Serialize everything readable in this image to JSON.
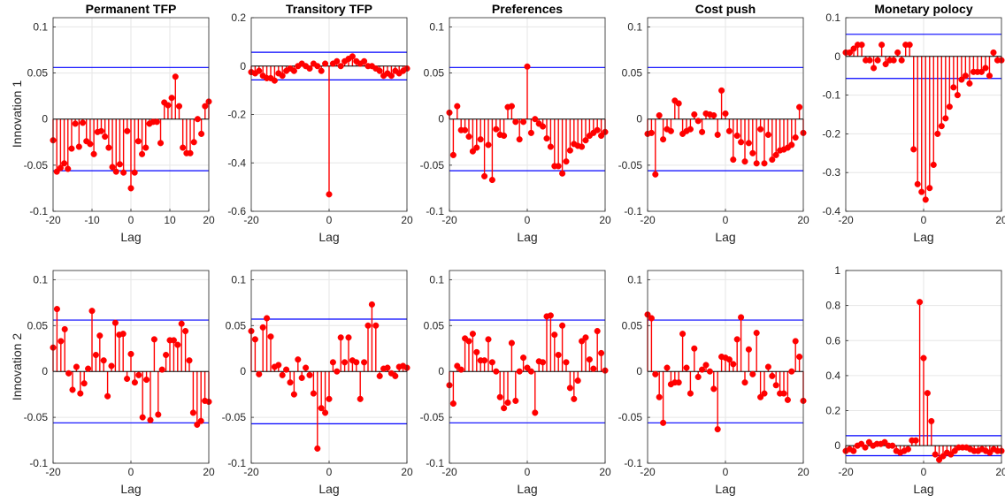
{
  "figure": {
    "row_labels": [
      "Innovation 1",
      "Innovation 2"
    ],
    "confidence_band_color": "#0000ff",
    "stem_color": "#ff0000",
    "marker_color": "#ff0000",
    "zero_line_color": "#000000",
    "grid": true
  },
  "chart_data": [
    {
      "type": "stem",
      "title": "Permanent TFP",
      "xlabel": "Lag",
      "ylabel": "Innovation 1",
      "xlim": [
        -20,
        20
      ],
      "ylim": [
        -0.1,
        0.11
      ],
      "xticks": [
        -20,
        -10,
        0,
        10,
        20
      ],
      "xtick_labels": [
        "-20",
        "-10",
        "0",
        "10",
        "20"
      ],
      "yticks": [
        -0.1,
        -0.05,
        0,
        0.05,
        0.1
      ],
      "ytick_labels": [
        "-0.1",
        "-0.05",
        "0",
        "0.05",
        "0.1"
      ],
      "band": 0.056,
      "values": [
        -0.023,
        -0.057,
        -0.053,
        -0.048,
        -0.054,
        -0.032,
        -0.005,
        -0.03,
        -0.004,
        -0.024,
        -0.027,
        -0.038,
        -0.014,
        -0.013,
        -0.019,
        -0.031,
        -0.052,
        -0.057,
        -0.049,
        -0.058,
        -0.013,
        -0.075,
        -0.058,
        -0.024,
        -0.038,
        -0.031,
        -0.005,
        -0.003,
        -0.003,
        -0.026,
        0.018,
        0.015,
        0.023,
        0.046,
        0.014,
        -0.031,
        -0.037,
        -0.037,
        -0.025,
        0.0,
        -0.016,
        0.014,
        0.019
      ]
    },
    {
      "type": "stem",
      "title": "Transitory TFP",
      "xlabel": "Lag",
      "ylabel": "",
      "xlim": [
        -20,
        20
      ],
      "ylim": [
        -0.6,
        0.2
      ],
      "xticks": [
        -20,
        0,
        20
      ],
      "xtick_labels": [
        "-20",
        "0",
        "20"
      ],
      "yticks": [
        -0.6,
        -0.4,
        -0.2,
        0,
        0.2
      ],
      "ytick_labels": [
        "-0.6",
        "-0.4",
        "-0.2",
        "0",
        "0.2"
      ],
      "band": 0.057,
      "values": [
        -0.025,
        -0.03,
        -0.02,
        -0.04,
        -0.05,
        -0.05,
        -0.06,
        -0.03,
        -0.04,
        -0.02,
        -0.01,
        -0.02,
        0.0,
        0.01,
        0.0,
        -0.01,
        0.01,
        0.0,
        -0.02,
        0.01,
        -0.53,
        0.01,
        0.02,
        0.0,
        0.02,
        0.03,
        0.04,
        0.02,
        0.01,
        0.02,
        0.0,
        0.0,
        -0.01,
        -0.02,
        -0.04,
        -0.03,
        -0.04,
        -0.02,
        -0.03,
        -0.02,
        -0.01
      ]
    },
    {
      "type": "stem",
      "title": "Preferences",
      "xlabel": "Lag",
      "ylabel": "",
      "xlim": [
        -20,
        20
      ],
      "ylim": [
        -0.1,
        0.11
      ],
      "xticks": [
        -20,
        0,
        20
      ],
      "xtick_labels": [
        "-20",
        "0",
        "20"
      ],
      "yticks": [
        -0.1,
        -0.05,
        0,
        0.05,
        0.1
      ],
      "ytick_labels": [
        "-0.1",
        "-0.05",
        "0",
        "0.05",
        "0.1"
      ],
      "band": 0.056,
      "values": [
        0.007,
        -0.039,
        0.014,
        -0.012,
        -0.012,
        -0.019,
        -0.035,
        -0.031,
        -0.022,
        -0.062,
        -0.028,
        -0.066,
        -0.011,
        -0.017,
        -0.018,
        0.013,
        0.014,
        -0.003,
        -0.022,
        -0.003,
        0.057,
        -0.015,
        0.0,
        -0.005,
        -0.008,
        -0.021,
        -0.03,
        -0.051,
        -0.051,
        -0.059,
        -0.046,
        -0.034,
        -0.027,
        -0.029,
        -0.03,
        -0.023,
        -0.018,
        -0.015,
        -0.012,
        -0.018,
        -0.014
      ]
    },
    {
      "type": "stem",
      "title": "Cost push",
      "xlabel": "Lag",
      "ylabel": "",
      "xlim": [
        -20,
        20
      ],
      "ylim": [
        -0.1,
        0.11
      ],
      "xticks": [
        -20,
        0,
        20
      ],
      "xtick_labels": [
        "-20",
        "0",
        "20"
      ],
      "yticks": [
        -0.1,
        -0.05,
        0,
        0.05,
        0.1
      ],
      "ytick_labels": [
        "-0.1",
        "-0.05",
        "0",
        "0.05",
        "0.1"
      ],
      "band": 0.056,
      "values": [
        -0.016,
        -0.015,
        -0.06,
        0.004,
        -0.022,
        -0.011,
        -0.013,
        0.02,
        0.017,
        -0.016,
        -0.013,
        -0.011,
        0.005,
        -0.002,
        -0.014,
        0.006,
        0.005,
        0.004,
        -0.017,
        0.031,
        0.006,
        -0.013,
        -0.044,
        -0.018,
        -0.025,
        -0.046,
        -0.026,
        -0.037,
        -0.048,
        -0.011,
        -0.048,
        -0.017,
        -0.044,
        -0.039,
        -0.034,
        -0.033,
        -0.031,
        -0.028,
        -0.02,
        0.013,
        -0.015
      ]
    },
    {
      "type": "stem",
      "title": "Monetary polocy",
      "xlabel": "Lag",
      "ylabel": "",
      "xlim": [
        -20,
        20
      ],
      "ylim": [
        -0.4,
        0.1
      ],
      "xticks": [
        -20,
        0,
        20
      ],
      "xtick_labels": [
        "-20",
        "0",
        "20"
      ],
      "yticks": [
        -0.4,
        -0.3,
        -0.2,
        -0.1,
        0,
        0.1
      ],
      "ytick_labels": [
        "-0.4",
        "-0.3",
        "-0.2",
        "-0.1",
        "0",
        "0.1"
      ],
      "band": 0.057,
      "values": [
        0.01,
        0.01,
        0.02,
        0.03,
        0.03,
        -0.01,
        -0.01,
        -0.03,
        -0.01,
        0.03,
        -0.02,
        -0.01,
        -0.01,
        0.01,
        -0.01,
        0.03,
        0.03,
        -0.24,
        -0.33,
        -0.35,
        -0.37,
        -0.34,
        -0.28,
        -0.2,
        -0.18,
        -0.16,
        -0.13,
        -0.08,
        -0.1,
        -0.06,
        -0.05,
        -0.07,
        -0.04,
        -0.04,
        -0.04,
        -0.03,
        -0.05,
        0.01,
        -0.01,
        -0.01
      ]
    },
    {
      "type": "stem",
      "title": "",
      "xlabel": "Lag",
      "ylabel": "Innovation 2",
      "xlim": [
        -20,
        20
      ],
      "ylim": [
        -0.1,
        0.11
      ],
      "xticks": [
        -20,
        0,
        20
      ],
      "xtick_labels": [
        "-20",
        "0",
        "20"
      ],
      "yticks": [
        -0.1,
        -0.05,
        0,
        0.05,
        0.1
      ],
      "ytick_labels": [
        "-0.1",
        "-0.05",
        "0",
        "0.05",
        "0.1"
      ],
      "band": 0.056,
      "values": [
        0.026,
        0.068,
        0.033,
        0.046,
        -0.002,
        -0.02,
        0.005,
        -0.024,
        -0.013,
        0.003,
        0.066,
        0.018,
        0.039,
        0.012,
        -0.027,
        0.006,
        0.053,
        0.04,
        0.041,
        -0.008,
        0.019,
        -0.012,
        -0.004,
        -0.05,
        -0.009,
        -0.053,
        0.035,
        -0.047,
        0.002,
        0.018,
        0.034,
        0.034,
        0.029,
        0.052,
        0.044,
        0.012,
        -0.045,
        -0.058,
        -0.054,
        -0.032,
        -0.033
      ]
    },
    {
      "type": "stem",
      "title": "",
      "xlabel": "Lag",
      "ylabel": "",
      "xlim": [
        -20,
        20
      ],
      "ylim": [
        -0.1,
        0.11
      ],
      "xticks": [
        -20,
        0,
        20
      ],
      "xtick_labels": [
        "-20",
        "0",
        "20"
      ],
      "yticks": [
        -0.1,
        -0.05,
        0,
        0.05,
        0.1
      ],
      "ytick_labels": [
        "-0.1",
        "-0.05",
        "0",
        "0.05",
        "0.1"
      ],
      "band": 0.057,
      "values": [
        0.044,
        0.035,
        -0.003,
        0.048,
        0.058,
        0.038,
        0.005,
        0.007,
        -0.004,
        0.002,
        -0.012,
        -0.025,
        0.013,
        -0.007,
        0.004,
        -0.004,
        -0.024,
        -0.084,
        -0.04,
        -0.045,
        -0.03,
        0.01,
        0.0,
        0.037,
        0.01,
        0.037,
        0.012,
        0.01,
        -0.03,
        0.01,
        0.05,
        0.073,
        0.05,
        -0.005,
        0.003,
        0.004,
        -0.002,
        -0.005,
        0.005,
        0.006,
        0.004
      ]
    },
    {
      "type": "stem",
      "title": "",
      "xlabel": "Lag",
      "ylabel": "",
      "xlim": [
        -20,
        20
      ],
      "ylim": [
        -0.1,
        0.11
      ],
      "xticks": [
        -20,
        0,
        20
      ],
      "xtick_labels": [
        "-20",
        "0",
        "20"
      ],
      "yticks": [
        -0.1,
        -0.05,
        0,
        0.05,
        0.1
      ],
      "ytick_labels": [
        "-0.1",
        "-0.05",
        "0",
        "0.05",
        "0.1"
      ],
      "band": 0.056,
      "values": [
        -0.015,
        -0.035,
        0.006,
        0.002,
        0.036,
        0.033,
        0.041,
        0.021,
        0.012,
        0.012,
        0.035,
        0.01,
        0.0,
        -0.028,
        -0.04,
        -0.034,
        0.031,
        -0.032,
        0.0,
        0.015,
        0.004,
        0.0,
        -0.045,
        0.011,
        0.01,
        0.06,
        0.061,
        0.04,
        0.018,
        0.05,
        0.01,
        -0.018,
        -0.03,
        -0.01,
        0.033,
        0.037,
        0.013,
        0.003,
        0.044,
        0.02,
        0.001
      ]
    },
    {
      "type": "stem",
      "title": "",
      "xlabel": "Lag",
      "ylabel": "",
      "xlim": [
        -20,
        20
      ],
      "ylim": [
        -0.1,
        0.11
      ],
      "xticks": [
        -20,
        0,
        20
      ],
      "xtick_labels": [
        "-20",
        "0",
        "20"
      ],
      "yticks": [
        -0.1,
        -0.05,
        0,
        0.05,
        0.1
      ],
      "ytick_labels": [
        "-0.1",
        "-0.05",
        "0",
        "0.05",
        "0.1"
      ],
      "band": 0.056,
      "values": [
        0.062,
        0.058,
        -0.003,
        -0.028,
        -0.056,
        0.004,
        -0.014,
        -0.012,
        -0.012,
        0.041,
        0.004,
        -0.024,
        0.025,
        -0.006,
        0.002,
        0.007,
        0.0,
        -0.019,
        -0.063,
        0.016,
        0.015,
        0.013,
        0.008,
        0.035,
        0.059,
        -0.012,
        0.024,
        -0.003,
        0.042,
        -0.028,
        -0.024,
        0.005,
        -0.005,
        -0.015,
        -0.024,
        -0.024,
        -0.031,
        0.0,
        0.033,
        0.016,
        -0.032
      ]
    },
    {
      "type": "stem",
      "title": "",
      "xlabel": "Lag",
      "ylabel": "",
      "xlim": [
        -20,
        20
      ],
      "ylim": [
        -0.1,
        1.0
      ],
      "xticks": [
        -20,
        0,
        20
      ],
      "xtick_labels": [
        "-20",
        "0",
        "20"
      ],
      "yticks": [
        0,
        0.2,
        0.4,
        0.6,
        0.8,
        1
      ],
      "ytick_labels": [
        "0",
        "0.2",
        "0.4",
        "0.6",
        "0.8",
        "1"
      ],
      "band": 0.057,
      "values": [
        -0.03,
        -0.02,
        -0.03,
        0.0,
        0.01,
        -0.01,
        0.02,
        0.0,
        0.01,
        0.01,
        0.02,
        0.0,
        0.0,
        -0.03,
        -0.04,
        -0.03,
        -0.02,
        0.03,
        0.03,
        0.82,
        0.5,
        0.3,
        0.14,
        -0.05,
        -0.08,
        -0.06,
        -0.04,
        -0.05,
        -0.03,
        -0.01,
        -0.01,
        -0.01,
        -0.02,
        -0.03,
        -0.03,
        -0.02,
        -0.03,
        -0.04,
        -0.02,
        -0.03,
        -0.03
      ]
    }
  ]
}
